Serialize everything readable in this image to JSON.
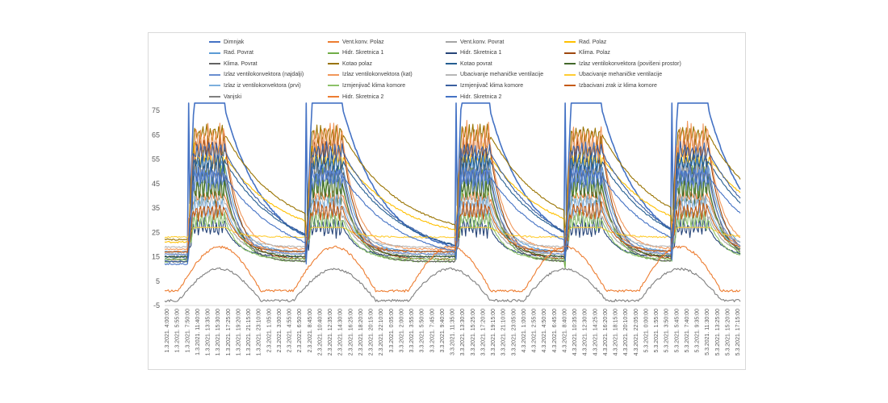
{
  "chart_data": {
    "type": "line",
    "title": "",
    "xlabel": "",
    "ylabel": "",
    "ylim": [
      -5,
      75
    ],
    "yticks": [
      -5,
      5,
      15,
      25,
      35,
      45,
      55,
      65,
      75
    ],
    "grid": false,
    "legend_position": "top",
    "x_tick_labels": [
      "1.3.2021. 4:00:00",
      "1.3.2021. 5:55:00",
      "1.3.2021. 7:50:00",
      "1.3.2021. 11:40:00",
      "1.3.2021. 13:35:00",
      "1.3.2021. 15:30:00",
      "1.3.2021. 17:25:00",
      "1.3.2021. 19:20:00",
      "1.3.2021. 21:15:00",
      "1.3.2021. 23:10:00",
      "2.3.2021. 1:05:00",
      "2.3.2021. 3:00:00",
      "2.3.2021. 4:55:00",
      "2.3.2021. 6:50:00",
      "2.3.2021. 8:45:00",
      "2.3.2021. 10:40:00",
      "2.3.2021. 12:35:00",
      "2.3.2021. 14:30:00",
      "2.3.2021. 16:25:00",
      "2.3.2021. 18:20:00",
      "2.3.2021. 20:15:00",
      "2.3.2021. 22:10:00",
      "3.3.2021. 0:05:00",
      "3.3.2021. 2:00:00",
      "3.3.2021. 3:55:00",
      "3.3.2021. 5:50:00",
      "3.3.2021. 7:45:00",
      "3.3.2021. 9:40:00",
      "3.3.2021. 11:35:00",
      "3.3.2021. 13:30:00",
      "3.3.2021. 15:25:00",
      "3.3.2021. 17:20:00",
      "3.3.2021. 19:15:00",
      "3.3.2021. 21:10:00",
      "3.3.2021. 23:05:00",
      "4.3.2021. 1:00:00",
      "4.3.2021. 2:55:00",
      "4.3.2021. 4:50:00",
      "4.3.2021. 6:45:00",
      "4.3.2021. 8:40:00",
      "4.3.2021. 10:35:00",
      "4.3.2021. 12:30:00",
      "4.3.2021. 14:25:00",
      "4.3.2021. 16:20:00",
      "4.3.2021. 18:15:00",
      "4.3.2021. 20:10:00",
      "4.3.2021. 22:05:00",
      "5.3.2021. 0:00:00",
      "5.3.2021. 1:55:00",
      "5.3.2021. 3:50:00",
      "5.3.2021. 5:45:00",
      "5.3.2021. 7:40:00",
      "5.3.2021. 9:35:00",
      "5.3.2021. 11:30:00",
      "5.3.2021. 13:25:00",
      "5.3.2021. 15:20:00",
      "5.3.2021. 17:15:00"
    ],
    "series": [
      {
        "name": "Dimnjak",
        "color": "#4472c4",
        "base": 15,
        "peak": 78,
        "mode": "spike",
        "amp": 0
      },
      {
        "name": "Vent.konv. Polaz",
        "color": "#ed7d31",
        "base": 17,
        "peak": 40,
        "mode": "fast",
        "amp": 2
      },
      {
        "name": "Vent.konv. Povrat",
        "color": "#a5a5a5",
        "base": 16,
        "peak": 32,
        "mode": "fast",
        "amp": 2
      },
      {
        "name": "Rad. Polaz",
        "color": "#ffc000",
        "base": 21,
        "peak": 56,
        "mode": "slow",
        "amp": 4
      },
      {
        "name": "Rad. Povrat",
        "color": "#5b9bd5",
        "base": 17,
        "peak": 52,
        "mode": "fast",
        "amp": 5
      },
      {
        "name": "Hidr. Skretnica 1",
        "color": "#70ad47",
        "base": 13,
        "peak": 44,
        "mode": "fast",
        "amp": 6
      },
      {
        "name": "Hidr. Skretnica 1",
        "color": "#264478",
        "base": 15,
        "peak": 27,
        "mode": "fast",
        "amp": 3
      },
      {
        "name": "Klima. Polaz",
        "color": "#9e480e",
        "base": 14,
        "peak": 60,
        "mode": "fast",
        "amp": 5
      },
      {
        "name": "Klima. Povrat",
        "color": "#636363",
        "base": 13,
        "peak": 50,
        "mode": "fast",
        "amp": 4
      },
      {
        "name": "Kotao polaz",
        "color": "#997300",
        "base": 22,
        "peak": 65,
        "mode": "slowhigh",
        "amp": 3
      },
      {
        "name": "Kotao povrat",
        "color": "#255e91",
        "base": 14,
        "peak": 54,
        "mode": "slow",
        "amp": 3
      },
      {
        "name": "Izlaz ventilokonvektora (povišeni prostor)",
        "color": "#43682b",
        "base": 15,
        "peak": 43,
        "mode": "fast",
        "amp": 5
      },
      {
        "name": "Izlaz ventilokonvektora (najdalji)",
        "color": "#698ed0",
        "base": 16,
        "peak": 47,
        "mode": "fast",
        "amp": 4
      },
      {
        "name": "Izlaz ventilokonvektora (kat)",
        "color": "#f1975a",
        "base": 18,
        "peak": 62,
        "mode": "fast",
        "amp": 6
      },
      {
        "name": "Ubacivanje mehaničke ventilacije",
        "color": "#b7b7b7",
        "base": 19,
        "peak": 38,
        "mode": "fast",
        "amp": 2
      },
      {
        "name": "Ubacivanje mehaničke ventilacije",
        "color": "#ffcd33",
        "base": 23,
        "peak": 27,
        "mode": "flat",
        "amp": 1
      },
      {
        "name": "Izlaz iz ventilokonvektora (prvi)",
        "color": "#7cafdd",
        "base": 17,
        "peak": 36,
        "mode": "fast",
        "amp": 3
      },
      {
        "name": "Izmjenjivač klima komore",
        "color": "#8cc168",
        "base": 14,
        "peak": 30,
        "mode": "fast",
        "amp": 3
      },
      {
        "name": "Izmjenjivač klima komore",
        "color": "#3a5fa0",
        "base": 13,
        "peak": 58,
        "mode": "slow",
        "amp": 3
      },
      {
        "name": "Izbacivani zrak iz klima komore",
        "color": "#c55a11",
        "base": 17,
        "peak": 34,
        "mode": "fast",
        "amp": 3
      },
      {
        "name": "Vanjski",
        "color": "#7f7f7f",
        "base": 0,
        "peak": 10,
        "mode": "outdoor",
        "amp": 1
      },
      {
        "name": "Hidr. Skretnica 2",
        "color": "#ed7d31",
        "base": 1,
        "peak": 19,
        "mode": "outdoor2",
        "amp": 1
      },
      {
        "name": "Hidr. Skretnica 2",
        "color": "#4472c4",
        "base": 12,
        "peak": 48,
        "mode": "slow",
        "amp": 3
      }
    ]
  }
}
